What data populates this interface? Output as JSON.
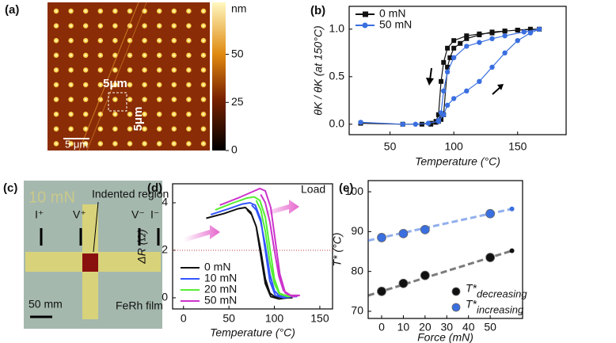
{
  "chart_data": [
    {
      "type": "line",
      "panel_label": "(b)",
      "xlabel": "Temperature (°C)",
      "ylabel": "θK / θK (at 150°C)",
      "xlim": [
        18,
        188
      ],
      "ylim": [
        -0.11,
        1.24
      ],
      "xticks": [
        50,
        100,
        150
      ],
      "yticks": [
        {
          "value": 0,
          "label": "0.0"
        },
        {
          "value": 0.5,
          "label": "0.5"
        },
        {
          "value": 1,
          "label": "1.0"
        }
      ],
      "markers": true,
      "legend": "upper left",
      "series": [
        {
          "name": "0 mN",
          "color": "#111111",
          "marker": "square",
          "x": [
            27,
            60,
            75,
            82,
            86,
            88,
            90,
            92,
            95,
            97,
            100,
            105,
            110,
            120,
            130,
            140,
            150,
            160,
            167,
            150,
            140,
            130,
            120,
            110,
            100,
            95,
            92,
            90,
            88,
            86,
            82
          ],
          "values": [
            0.01,
            0.0,
            0.0,
            0.01,
            0.02,
            0.03,
            0.05,
            0.1,
            0.6,
            0.7,
            0.8,
            0.85,
            0.9,
            0.94,
            0.97,
            0.98,
            0.99,
            1.0,
            1.0,
            0.99,
            0.98,
            0.96,
            0.95,
            0.93,
            0.88,
            0.8,
            0.65,
            0.45,
            0.1,
            0.03,
            0.0
          ]
        },
        {
          "name": "50 mN",
          "color": "#3a6fe0",
          "marker": "circle",
          "x": [
            27,
            60,
            70,
            80,
            88,
            92,
            95,
            100,
            110,
            120,
            130,
            140,
            150,
            160,
            167,
            155,
            140,
            130,
            120,
            110,
            100,
            95,
            92,
            90,
            88
          ],
          "values": [
            0.02,
            0.0,
            0.0,
            0.01,
            0.03,
            0.1,
            0.2,
            0.27,
            0.35,
            0.45,
            0.6,
            0.75,
            0.88,
            0.96,
            1.0,
            0.97,
            0.93,
            0.9,
            0.86,
            0.82,
            0.7,
            0.55,
            0.35,
            0.12,
            0.04
          ]
        }
      ]
    },
    {
      "type": "line",
      "panel_label": "(d)",
      "xlabel": "Temperature (°C)",
      "ylabel": "ΔR (Ω)",
      "xlim": [
        -12,
        164
      ],
      "ylim": [
        -0.47,
        4.8
      ],
      "xticks": [
        0,
        50,
        100,
        150
      ],
      "yticks": [
        0,
        2,
        4
      ],
      "markers": false,
      "legend": "lower left",
      "reference_y": 2,
      "annotation": "Load",
      "series": [
        {
          "name": "0 mN",
          "color": "#111111",
          "x": [
            25,
            45,
            60,
            68,
            74,
            80,
            85,
            90,
            96,
            105,
            115,
            120,
            110,
            100,
            95,
            90,
            85,
            80,
            75,
            70
          ],
          "values": [
            3.35,
            3.55,
            3.75,
            3.8,
            3.6,
            3.0,
            1.8,
            0.6,
            0.05,
            -0.05,
            0.0,
            0.0,
            0.0,
            0.05,
            0.2,
            0.8,
            2.0,
            3.0,
            3.5,
            3.7
          ]
        },
        {
          "name": "10 mN",
          "color": "#3355ff",
          "x": [
            30,
            50,
            65,
            73,
            79,
            85,
            90,
            95,
            101,
            110,
            120,
            125,
            115,
            105,
            100,
            95,
            90,
            85,
            80,
            75
          ],
          "values": [
            3.5,
            3.75,
            3.95,
            4.0,
            3.9,
            3.3,
            2.0,
            0.7,
            0.1,
            0.0,
            0.05,
            0.05,
            0.05,
            0.1,
            0.3,
            1.0,
            2.2,
            3.2,
            3.7,
            3.9
          ]
        },
        {
          "name": "20 mN",
          "color": "#55ee33",
          "x": [
            35,
            55,
            70,
            78,
            84,
            90,
            95,
            100,
            106,
            115,
            125,
            112,
            105,
            100,
            95,
            90,
            85,
            80
          ],
          "values": [
            3.7,
            4.0,
            4.2,
            4.25,
            4.1,
            3.4,
            2.1,
            0.8,
            0.15,
            0.05,
            0.1,
            0.1,
            0.2,
            0.6,
            1.5,
            2.8,
            3.7,
            4.1
          ]
        },
        {
          "name": "50 mN",
          "color": "#cc33cc",
          "x": [
            40,
            60,
            75,
            84,
            90,
            96,
            101,
            106,
            112,
            120,
            128,
            118,
            110,
            105,
            100,
            95,
            90,
            85
          ],
          "values": [
            3.9,
            4.2,
            4.45,
            4.6,
            4.5,
            3.8,
            2.4,
            1.0,
            0.2,
            0.05,
            0.1,
            0.1,
            0.3,
            0.9,
            2.0,
            3.2,
            4.0,
            4.35
          ]
        }
      ]
    },
    {
      "type": "scatter",
      "panel_label": "(e)",
      "xlabel": "Force (mN)",
      "ylabel": "T* (°C)",
      "xlim": [
        -6.2,
        64.9
      ],
      "ylim": [
        68.2,
        102.8
      ],
      "xticks": [
        0,
        10,
        20,
        30,
        40,
        50
      ],
      "yticks": [
        70,
        80,
        90,
        100
      ],
      "legend": "lower right",
      "series": [
        {
          "name": "T*",
          "name_sub": "decreasing",
          "color": "#111111",
          "x": [
            0,
            10,
            20,
            50
          ],
          "values": [
            75,
            77,
            79,
            83.5
          ]
        },
        {
          "name": "T*",
          "name_sub": "increasing",
          "color": "#3a6fe0",
          "x": [
            0,
            10,
            20,
            50
          ],
          "values": [
            88.5,
            89.5,
            90.5,
            94.5
          ]
        }
      ]
    }
  ],
  "images": {
    "a": {
      "panel_label": "(a)",
      "colorbar_label": "nm",
      "colorbar_lim": [
        0,
        77
      ],
      "colorbar_ticks": [
        0,
        25,
        50
      ],
      "box_label_h": "5μm",
      "box_label_v": "5μm",
      "scale_bar": "5 μm"
    },
    "c": {
      "panel_label": "(c)",
      "load": "10 mN",
      "region": "Indented region",
      "probes": [
        "I⁺",
        "V⁺",
        "V⁻",
        "I⁻"
      ],
      "scale_bar": "50 mm",
      "film": "FeRh film"
    }
  }
}
